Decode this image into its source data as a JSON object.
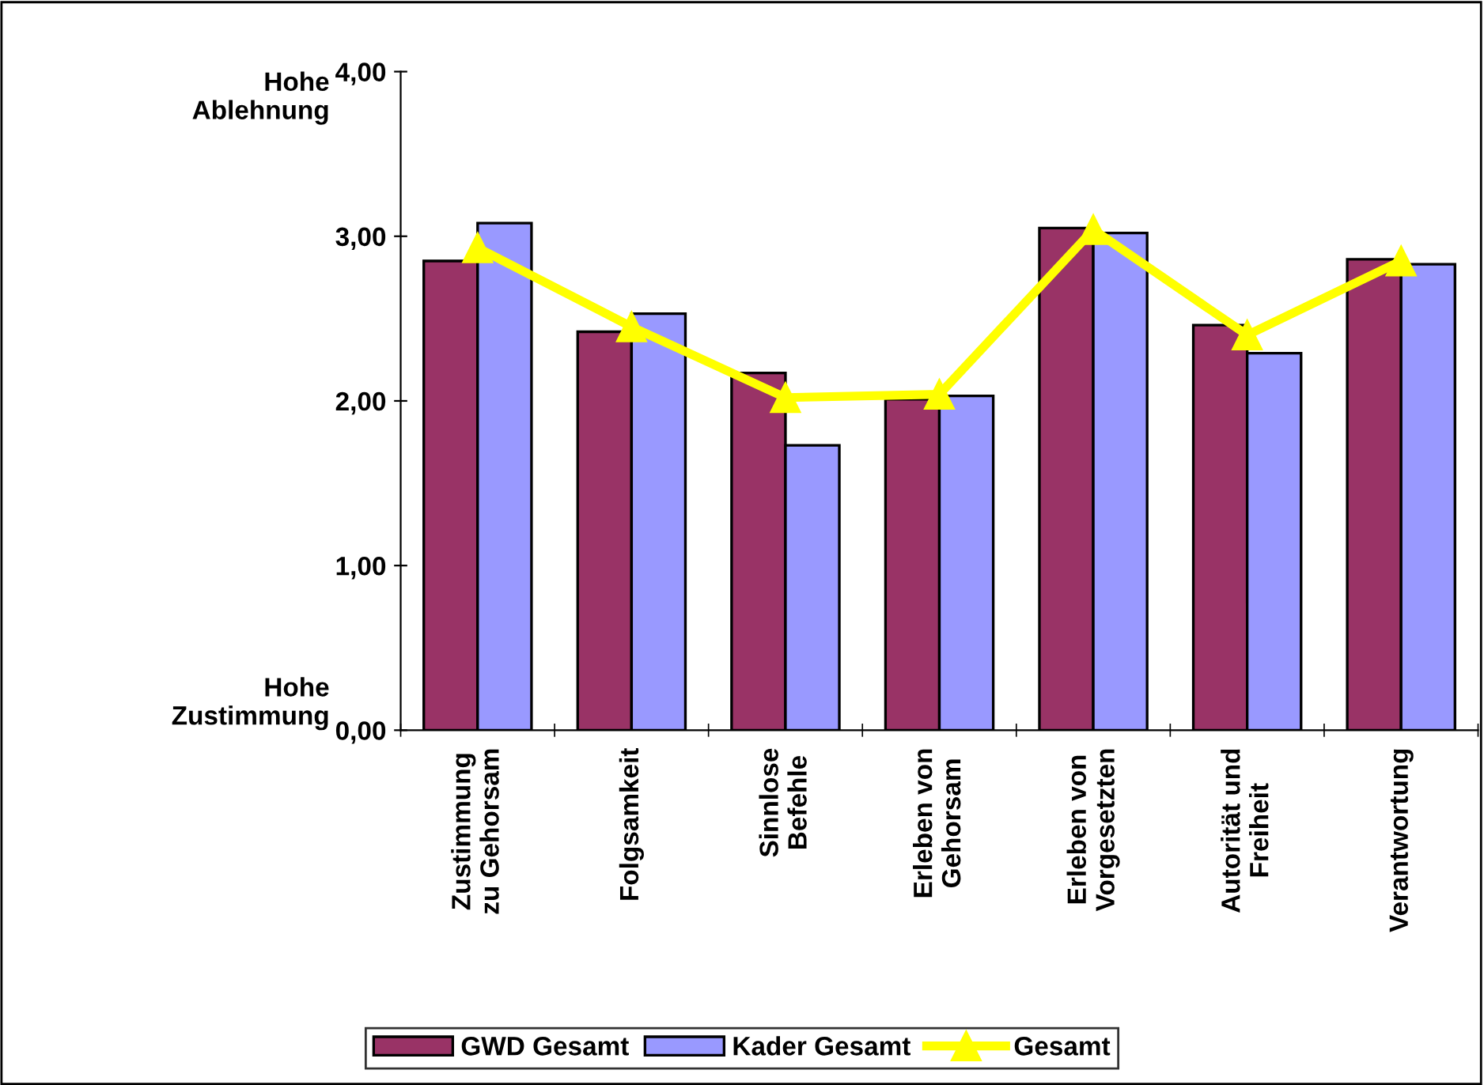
{
  "chart_data": {
    "type": "bar",
    "categories": [
      "Zustimmung\nzu Gehorsam",
      "Folgsamkeit",
      "Sinnlose\nBefehle",
      "Erleben von\nGehorsam",
      "Erleben von\nVorgesetzten",
      "Autorität und\nFreiheit",
      "Verantwortung"
    ],
    "series": [
      {
        "name": "GWD Gesamt",
        "color": "#993366",
        "values": [
          2.85,
          2.42,
          2.17,
          2.01,
          3.05,
          2.46,
          2.86
        ]
      },
      {
        "name": "Kader Gesamt",
        "color": "#9999ff",
        "values": [
          3.08,
          2.53,
          1.73,
          2.03,
          3.02,
          2.29,
          2.83
        ]
      },
      {
        "name": "Gesamt",
        "type": "line",
        "color": "#ffff00",
        "marker": "triangle",
        "values": [
          2.93,
          2.45,
          2.02,
          2.04,
          3.04,
          2.4,
          2.85
        ]
      }
    ],
    "ylim": [
      0,
      4
    ],
    "yticks": [
      {
        "value": 0,
        "label": "0,00"
      },
      {
        "value": 1,
        "label": "1,00"
      },
      {
        "value": 2,
        "label": "2,00"
      },
      {
        "value": 3,
        "label": "3,00"
      },
      {
        "value": 4,
        "label": "4,00"
      }
    ],
    "annotations": [
      "Hohe\nAblehnung",
      "Hohe\nZustimmung"
    ],
    "legend": "bottom",
    "grid": false
  }
}
